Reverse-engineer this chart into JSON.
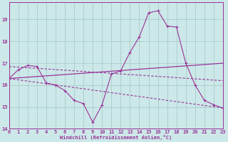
{
  "background_color": "#cce8e8",
  "grid_color": "#aacccc",
  "line_color": "#993399",
  "xlabel": "Windchill (Refroidissement éolien,°C)",
  "xlim": [
    0,
    23
  ],
  "ylim": [
    14,
    19.8
  ],
  "yticks": [
    14,
    15,
    16,
    17,
    18,
    19
  ],
  "xticks": [
    0,
    1,
    2,
    3,
    4,
    5,
    6,
    7,
    8,
    9,
    10,
    11,
    12,
    13,
    14,
    15,
    16,
    17,
    18,
    19,
    20,
    21,
    22,
    23
  ],
  "line1_x": [
    0,
    1,
    2,
    3,
    4,
    5,
    6,
    7,
    8,
    9,
    10,
    11,
    12,
    13,
    14,
    15,
    16,
    17,
    18,
    19,
    20,
    21,
    22,
    23
  ],
  "line1_y": [
    16.3,
    16.7,
    16.9,
    16.85,
    16.1,
    16.0,
    15.75,
    15.3,
    15.15,
    14.3,
    15.1,
    16.5,
    16.65,
    17.5,
    18.2,
    19.3,
    19.4,
    18.7,
    18.65,
    17.0,
    16.0,
    15.3,
    15.1,
    14.95
  ],
  "line2_x": [
    0,
    23
  ],
  "line2_y": [
    16.3,
    17.0
  ],
  "line3_x": [
    0,
    23
  ],
  "line3_y": [
    16.85,
    16.2
  ],
  "line4_x": [
    0,
    23
  ],
  "line4_y": [
    16.3,
    14.95
  ]
}
